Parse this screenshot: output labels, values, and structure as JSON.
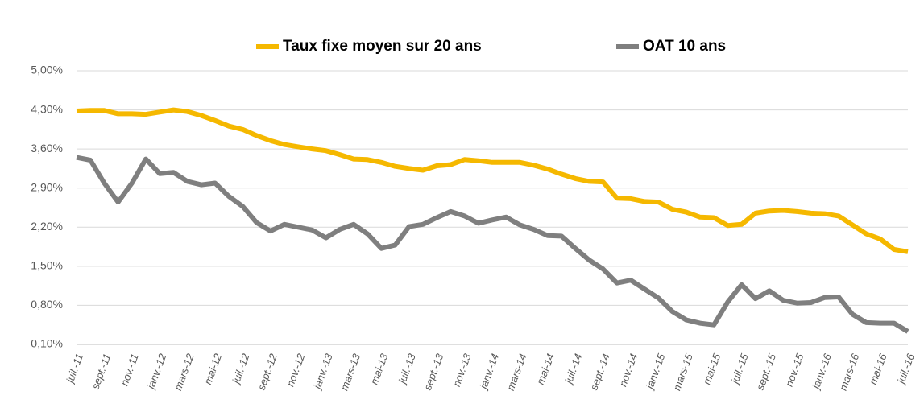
{
  "chart_data": {
    "type": "line",
    "categories": [
      "juil.-11",
      null,
      "sept.-11",
      null,
      "nov.-11",
      null,
      "janv.-12",
      null,
      "mars-12",
      null,
      "mai-12",
      null,
      "juil.-12",
      null,
      "sept.-12",
      null,
      "nov.-12",
      null,
      "janv.-13",
      null,
      "mars-13",
      null,
      "mai-13",
      null,
      "juil.-13",
      null,
      "sept.-13",
      null,
      "nov.-13",
      null,
      "janv.-14",
      null,
      "mars-14",
      null,
      "mai-14",
      null,
      "juil.-14",
      null,
      "sept.-14",
      null,
      "nov.-14",
      null,
      "janv.-15",
      null,
      "mars-15",
      null,
      "mai-15",
      null,
      "juil.-15",
      null,
      "sept.-15",
      null,
      "nov.-15",
      null,
      "janv.-16",
      null,
      "mars-16",
      null,
      "mai-16",
      null,
      "juil.-16"
    ],
    "series": [
      {
        "name": "Taux fixe moyen sur 20 ans",
        "color": "#f5b800",
        "values": [
          4.28,
          4.29,
          4.29,
          4.23,
          4.23,
          4.22,
          4.26,
          4.3,
          4.27,
          4.2,
          4.11,
          4.01,
          3.95,
          3.84,
          3.75,
          3.68,
          3.64,
          3.6,
          3.57,
          3.5,
          3.42,
          3.41,
          3.36,
          3.29,
          3.25,
          3.22,
          3.3,
          3.32,
          3.41,
          3.39,
          3.36,
          3.36,
          3.36,
          3.31,
          3.24,
          3.15,
          3.07,
          3.02,
          3.01,
          2.72,
          2.71,
          2.66,
          2.65,
          2.52,
          2.47,
          2.38,
          2.37,
          2.23,
          2.25,
          2.45,
          2.49,
          2.5,
          2.48,
          2.45,
          2.44,
          2.4,
          2.24,
          2.08,
          1.99,
          1.8,
          1.76
        ]
      },
      {
        "name": "OAT 10 ans",
        "color": "#7f7f7f",
        "values": [
          3.45,
          3.4,
          2.99,
          2.65,
          2.99,
          3.42,
          3.16,
          3.18,
          3.02,
          2.96,
          2.99,
          2.75,
          2.57,
          2.28,
          2.13,
          2.25,
          2.2,
          2.15,
          2.01,
          2.16,
          2.25,
          2.08,
          1.82,
          1.88,
          2.21,
          2.25,
          2.37,
          2.48,
          2.4,
          2.27,
          2.33,
          2.38,
          2.24,
          2.16,
          2.05,
          2.04,
          1.82,
          1.61,
          1.45,
          1.2,
          1.25,
          1.09,
          0.93,
          0.69,
          0.54,
          0.48,
          0.45,
          0.86,
          1.17,
          0.92,
          1.06,
          0.89,
          0.84,
          0.85,
          0.94,
          0.95,
          0.64,
          0.49,
          0.48,
          0.48,
          0.33
        ]
      }
    ],
    "ylim": [
      0.1,
      5.0
    ],
    "yticks": [
      {
        "value": 0.1,
        "label": "0,10%"
      },
      {
        "value": 0.8,
        "label": "0,80%"
      },
      {
        "value": 1.5,
        "label": "1,50%"
      },
      {
        "value": 2.2,
        "label": "2,20%"
      },
      {
        "value": 2.9,
        "label": "2,90%"
      },
      {
        "value": 3.6,
        "label": "3,60%"
      },
      {
        "value": 4.3,
        "label": "4,30%"
      },
      {
        "value": 5.0,
        "label": "5,00%"
      }
    ],
    "grid": true,
    "legend": "top"
  }
}
